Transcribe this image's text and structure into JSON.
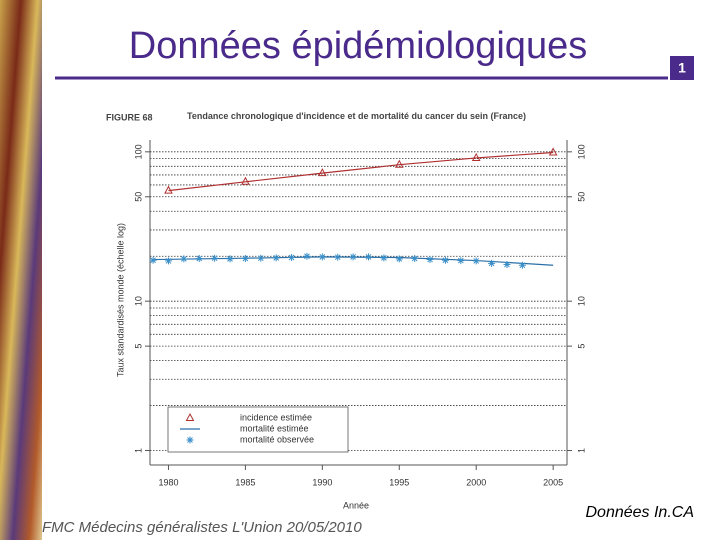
{
  "slide": {
    "title": "Données épidémiologiques",
    "number": "1",
    "footer": "FMC Médecins généralistes L'Union 20/05/2010",
    "source": "Données In.CA"
  },
  "chart_data": {
    "type": "line",
    "figure_label": "FIGURE 68",
    "title": "Tendance chronologique d'incidence et de mortalité du cancer du sein (France)",
    "x_label": "Année",
    "y_label": "Taux standardisés monde (échelle log)",
    "log_y": true,
    "xlim": [
      1978.8,
      2005.9
    ],
    "xticks": [
      1980,
      1985,
      1990,
      1995,
      2000,
      2005
    ],
    "ylim": [
      0.8,
      120
    ],
    "yticks": [
      1,
      5,
      10,
      50,
      100
    ],
    "y_minor_ticks": [
      2,
      3,
      4,
      6,
      7,
      8,
      9,
      20,
      30,
      40,
      60,
      70,
      80,
      90
    ],
    "grid": true,
    "series": [
      {
        "name": "incidence estimée",
        "color": "#b03030",
        "marker": "triangle",
        "x": [
          1980,
          1985,
          1990,
          1995,
          2000,
          2005
        ],
        "values": [
          55,
          63,
          72,
          82,
          91,
          99
        ]
      },
      {
        "name": "mortalité estimée",
        "color": "#2a6fa8",
        "marker": "none",
        "x": [
          1979,
          1985,
          1990,
          1995,
          2000,
          2005
        ],
        "values": [
          19.0,
          19.4,
          19.8,
          19.6,
          18.7,
          17.4
        ]
      },
      {
        "name": "mortalité observée",
        "color": "#3a8fc8",
        "marker": "asterisk",
        "x": [
          1979,
          1980,
          1981,
          1982,
          1983,
          1984,
          1985,
          1986,
          1987,
          1988,
          1989,
          1990,
          1991,
          1992,
          1993,
          1994,
          1995,
          1996,
          1997,
          1998,
          1999,
          2000,
          2001,
          2002,
          2003
        ],
        "values": [
          18.8,
          18.6,
          19.2,
          19.3,
          19.4,
          19.2,
          19.3,
          19.4,
          19.5,
          19.6,
          20.0,
          19.8,
          19.7,
          19.8,
          19.8,
          19.5,
          19.2,
          19.3,
          19.0,
          18.8,
          18.7,
          18.6,
          17.9,
          17.6,
          17.4
        ]
      }
    ]
  }
}
